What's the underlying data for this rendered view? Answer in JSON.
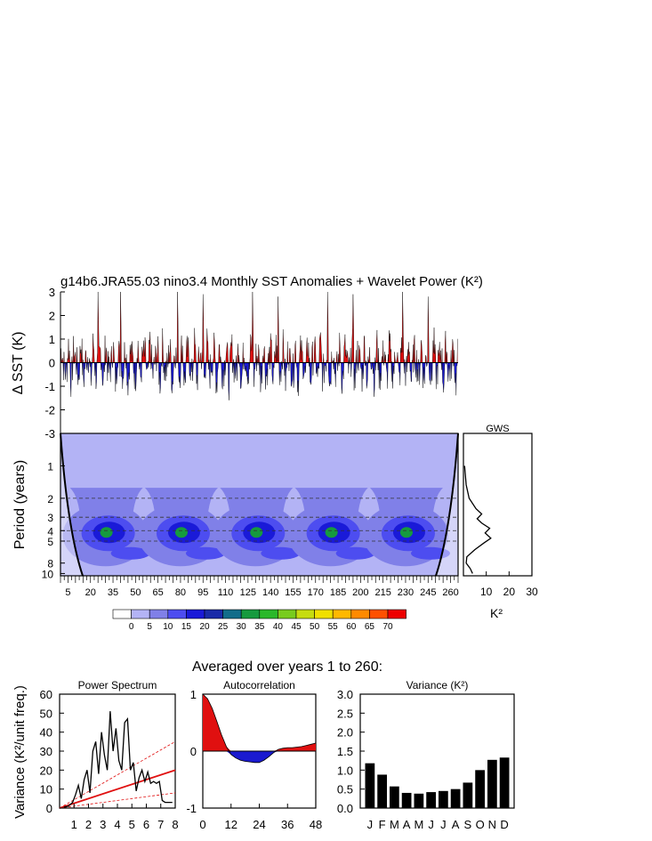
{
  "title": "g14b6.JRA55.03 nino3.4 Monthly SST Anomalies + Wavelet Power (K²)",
  "colors": {
    "positive": "#e01010",
    "negative": "#1a1ad0",
    "contour_fills": [
      "#ffffff",
      "#b3b3f5",
      "#8080e8",
      "#4d4df0",
      "#1a1ad8",
      "#1a2ba8",
      "#126d8a",
      "#169a3e",
      "#2ab82a",
      "#78cc1e",
      "#c6dc10",
      "#f0e000",
      "#ffb800",
      "#ff8a00",
      "#ff5000",
      "#ee0000"
    ]
  },
  "chart_data": [
    {
      "id": "sst-timeseries",
      "type": "area",
      "ylabel": "Δ SST (K)",
      "ylim": [
        -3,
        3
      ],
      "yticks": [
        "3",
        "2",
        "1",
        "0",
        "-1",
        "-2",
        "-3"
      ],
      "xlim": [
        0,
        265
      ],
      "note_series": "monthly SST anomaly, positive red / negative blue",
      "peak_years": [
        25,
        40,
        78,
        95,
        128,
        145,
        178,
        195,
        228,
        245
      ],
      "peak_values": [
        3.0,
        3.0,
        3.0,
        2.9,
        3.0,
        2.8,
        3.0,
        2.9,
        3.0,
        2.8
      ],
      "typical_min": -1.9
    },
    {
      "id": "wavelet-power",
      "type": "heatmap",
      "ylabel": "Period (years)",
      "yticks": [
        "1",
        "2",
        "3",
        "4",
        "5",
        "8",
        "10"
      ],
      "ytick_values": [
        1,
        2,
        3,
        4,
        5,
        8,
        10
      ],
      "dashed_periods": [
        2,
        3,
        4,
        5
      ],
      "xlabel": "",
      "xticks": [
        "5",
        "20",
        "35",
        "50",
        "65",
        "80",
        "95",
        "110",
        "125",
        "140",
        "155",
        "170",
        "185",
        "200",
        "215",
        "230",
        "245",
        "260"
      ],
      "xtick_values": [
        5,
        20,
        35,
        50,
        65,
        80,
        95,
        110,
        125,
        140,
        155,
        170,
        185,
        200,
        215,
        230,
        245,
        260
      ],
      "xlim": [
        0,
        265
      ],
      "blob_centers_years": [
        30,
        80,
        130,
        180,
        230
      ],
      "blob_peak_period": 4,
      "blob_peak_power": 25,
      "colorbar_labels": [
        "0",
        "5",
        "10",
        "15",
        "20",
        "25",
        "30",
        "35",
        "40",
        "45",
        "50",
        "55",
        "60",
        "65",
        "70"
      ]
    },
    {
      "id": "gws",
      "type": "line",
      "title": "GWS",
      "xlabel": "K²",
      "xticks": [
        "10",
        "20",
        "30"
      ],
      "xtick_values": [
        10,
        20,
        30
      ],
      "xlim": [
        0,
        30
      ],
      "points": [
        {
          "period": 1,
          "power": 0.5
        },
        {
          "period": 1.5,
          "power": 1.2
        },
        {
          "period": 2,
          "power": 2.5
        },
        {
          "period": 2.5,
          "power": 5.5
        },
        {
          "period": 2.8,
          "power": 8
        },
        {
          "period": 3.1,
          "power": 6
        },
        {
          "period": 3.4,
          "power": 8
        },
        {
          "period": 3.8,
          "power": 11.5
        },
        {
          "period": 4.2,
          "power": 9.5
        },
        {
          "period": 4.7,
          "power": 12
        },
        {
          "period": 5.2,
          "power": 9
        },
        {
          "period": 6,
          "power": 5
        },
        {
          "period": 7,
          "power": 1.5
        },
        {
          "period": 8,
          "power": 1.2
        },
        {
          "period": 9,
          "power": 3
        },
        {
          "period": 10,
          "power": 4
        }
      ]
    },
    {
      "id": "power-spectrum",
      "type": "line",
      "title": "Power Spectrum",
      "ylabel": "Variance (K²/unit freq.)",
      "ylim": [
        0,
        60
      ],
      "yticks": [
        "0",
        "10",
        "20",
        "30",
        "40",
        "50",
        "60"
      ],
      "xlim": [
        0,
        8
      ],
      "xticks": [
        "1",
        "2",
        "3",
        "4",
        "5",
        "6",
        "7",
        "8"
      ],
      "series": [
        {
          "x": [
            0.3,
            0.6,
            0.9,
            1.1,
            1.3,
            1.5,
            1.7,
            1.9,
            2.1,
            2.3,
            2.5,
            2.7,
            2.9,
            3.1,
            3.3,
            3.5,
            3.7,
            3.9,
            4.1,
            4.3,
            4.5,
            4.7,
            4.9,
            5.1,
            5.3,
            5.5,
            5.7,
            5.9,
            6.1,
            6.3,
            6.5,
            6.7,
            6.9,
            7.1,
            7.3,
            7.5,
            7.8
          ],
          "y": [
            0.5,
            1,
            3,
            7,
            12,
            5,
            15,
            20,
            8,
            30,
            35,
            18,
            40,
            28,
            20,
            51,
            30,
            42,
            25,
            20,
            45,
            47,
            20,
            24,
            9,
            16,
            20,
            14,
            19,
            13,
            14,
            13,
            14,
            4,
            3,
            3,
            3
          ]
        }
      ],
      "reference_lines": [
        {
          "style": "solid",
          "y_at_x0": 0,
          "y_at_x8": 20
        },
        {
          "style": "dashed",
          "y_at_x0": 0,
          "y_at_x8": 35
        },
        {
          "style": "dashed",
          "y_at_x0": 0,
          "y_at_x8": 8
        }
      ]
    },
    {
      "id": "autocorrelation",
      "type": "area",
      "title": "Autocorrelation",
      "ylim": [
        -1,
        1
      ],
      "yticks": [
        "1",
        "0",
        "-1"
      ],
      "xlim": [
        0,
        48
      ],
      "xticks": [
        "0",
        "12",
        "24",
        "36",
        "48"
      ],
      "x": [
        0,
        2,
        4,
        6,
        8,
        10,
        12,
        14,
        16,
        18,
        20,
        22,
        24,
        26,
        28,
        30,
        32,
        34,
        36,
        38,
        40,
        42,
        44,
        46,
        48
      ],
      "y": [
        1,
        0.92,
        0.75,
        0.52,
        0.28,
        0.08,
        -0.06,
        -0.12,
        -0.16,
        -0.18,
        -0.19,
        -0.2,
        -0.2,
        -0.16,
        -0.1,
        -0.03,
        0.03,
        0.05,
        0.06,
        0.06,
        0.07,
        0.08,
        0.1,
        0.12,
        0.14
      ]
    },
    {
      "id": "variance",
      "type": "bar",
      "title": "Variance (K²)",
      "categories": [
        "J",
        "F",
        "M",
        "A",
        "M",
        "J",
        "J",
        "A",
        "S",
        "O",
        "N",
        "D"
      ],
      "values": [
        1.18,
        0.88,
        0.57,
        0.4,
        0.38,
        0.42,
        0.45,
        0.5,
        0.67,
        1.0,
        1.27,
        1.33
      ],
      "ylim": [
        0,
        3
      ],
      "yticks": [
        "0.0",
        "0.5",
        "1.0",
        "1.5",
        "2.0",
        "2.5",
        "3.0"
      ]
    }
  ],
  "bottom_heading": "Averaged over years 1 to 260:"
}
